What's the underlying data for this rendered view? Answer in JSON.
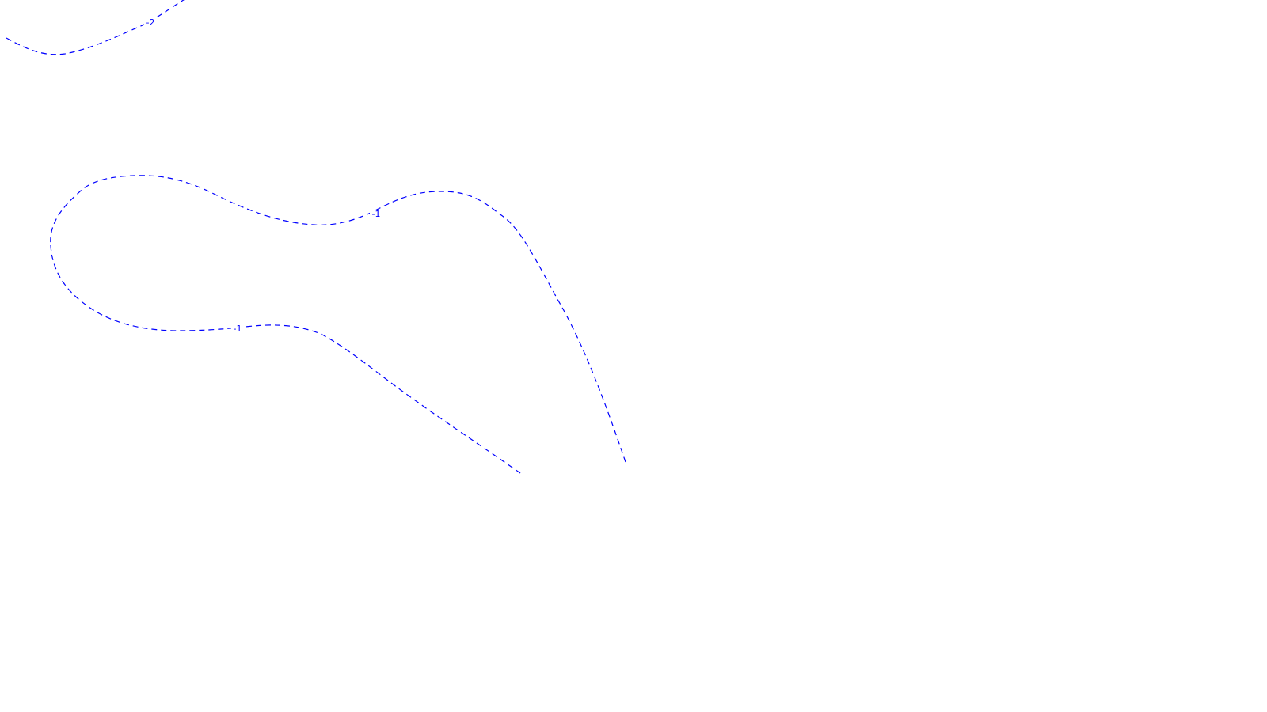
{
  "chart_data": {
    "type": "contour",
    "title": "",
    "xlabel": "",
    "ylabel": "",
    "grid": false,
    "legend": "none",
    "line_style": "dashed",
    "line_color": "#0000ff",
    "contours": [
      {
        "level_label": "-2",
        "segments": [
          {
            "id": "upper-left-curve"
          }
        ]
      },
      {
        "level_label": "-1",
        "segments": [
          {
            "id": "loop-top-branch"
          },
          {
            "id": "loop-bottom-branch"
          }
        ]
      }
    ]
  }
}
